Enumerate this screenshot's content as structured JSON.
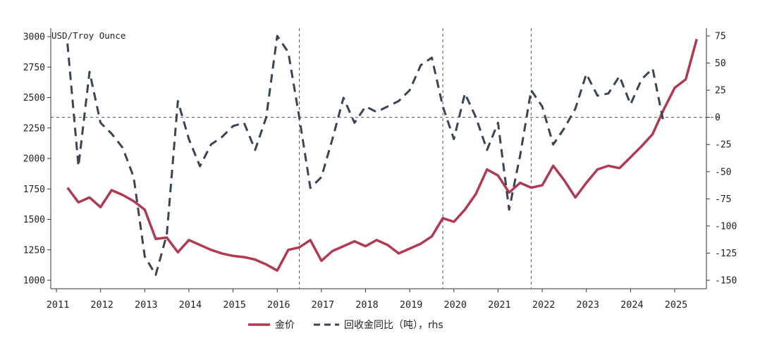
{
  "chart_data": {
    "type": "line",
    "title": "",
    "y_left_label": "USD/Troy Ounce",
    "y_left_range": [
      1000,
      3000
    ],
    "y_left_ticks": [
      "3000",
      "2750",
      "2500",
      "2250",
      "2000",
      "1750",
      "1500",
      "1250",
      "1000"
    ],
    "y_right_range": [
      -150,
      75
    ],
    "y_right_ticks": [
      "75",
      "50",
      "25",
      "0",
      "-25",
      "-50",
      "-75",
      "-100",
      "-125",
      "-150"
    ],
    "x_ticks": [
      "2011",
      "2012",
      "2013",
      "2014",
      "2015",
      "2016",
      "2017",
      "2018",
      "2019",
      "2020",
      "2021",
      "2022",
      "2023",
      "2024",
      "2025"
    ],
    "x_range": [
      2011.0,
      2025.0
    ],
    "vertical_reference_lines": [
      2016.5,
      2019.75,
      2021.75
    ],
    "horizontal_reference_right": 0,
    "legend_position": "bottom",
    "series": [
      {
        "name": "金价",
        "axis": "left",
        "style": "solid",
        "color": "#b03a52",
        "points": [
          [
            2011.25,
            1760
          ],
          [
            2011.5,
            1640
          ],
          [
            2011.75,
            1680
          ],
          [
            2012.0,
            1600
          ],
          [
            2012.25,
            1740
          ],
          [
            2012.5,
            1700
          ],
          [
            2012.75,
            1650
          ],
          [
            2013.0,
            1580
          ],
          [
            2013.25,
            1340
          ],
          [
            2013.5,
            1350
          ],
          [
            2013.75,
            1230
          ],
          [
            2014.0,
            1330
          ],
          [
            2014.25,
            1290
          ],
          [
            2014.5,
            1250
          ],
          [
            2014.75,
            1220
          ],
          [
            2015.0,
            1200
          ],
          [
            2015.25,
            1190
          ],
          [
            2015.5,
            1170
          ],
          [
            2015.75,
            1130
          ],
          [
            2016.0,
            1080
          ],
          [
            2016.25,
            1250
          ],
          [
            2016.5,
            1270
          ],
          [
            2016.75,
            1330
          ],
          [
            2017.0,
            1160
          ],
          [
            2017.25,
            1240
          ],
          [
            2017.5,
            1280
          ],
          [
            2017.75,
            1320
          ],
          [
            2018.0,
            1280
          ],
          [
            2018.25,
            1330
          ],
          [
            2018.5,
            1290
          ],
          [
            2018.75,
            1220
          ],
          [
            2019.0,
            1260
          ],
          [
            2019.25,
            1300
          ],
          [
            2019.5,
            1360
          ],
          [
            2019.75,
            1510
          ],
          [
            2020.0,
            1480
          ],
          [
            2020.25,
            1580
          ],
          [
            2020.5,
            1710
          ],
          [
            2020.75,
            1910
          ],
          [
            2021.0,
            1860
          ],
          [
            2021.25,
            1720
          ],
          [
            2021.5,
            1800
          ],
          [
            2021.75,
            1760
          ],
          [
            2022.0,
            1780
          ],
          [
            2022.25,
            1940
          ],
          [
            2022.5,
            1820
          ],
          [
            2022.75,
            1680
          ],
          [
            2023.0,
            1800
          ],
          [
            2023.25,
            1910
          ],
          [
            2023.5,
            1940
          ],
          [
            2023.75,
            1920
          ],
          [
            2024.0,
            2010
          ],
          [
            2024.25,
            2100
          ],
          [
            2024.5,
            2200
          ],
          [
            2024.75,
            2400
          ],
          [
            2025.0,
            2580
          ],
          [
            2025.25,
            2650
          ],
          [
            2025.5,
            2980
          ]
        ]
      },
      {
        "name": "回收金同比（吨），rhs",
        "axis": "right",
        "style": "dashed",
        "color": "#3b4456",
        "points": [
          [
            2011.25,
            68
          ],
          [
            2011.5,
            -45
          ],
          [
            2011.75,
            42
          ],
          [
            2012.0,
            -5
          ],
          [
            2012.25,
            -15
          ],
          [
            2012.5,
            -28
          ],
          [
            2012.75,
            -55
          ],
          [
            2013.0,
            -128
          ],
          [
            2013.25,
            -145
          ],
          [
            2013.5,
            -108
          ],
          [
            2013.75,
            15
          ],
          [
            2014.0,
            -20
          ],
          [
            2014.25,
            -45
          ],
          [
            2014.5,
            -25
          ],
          [
            2014.75,
            -18
          ],
          [
            2015.0,
            -8
          ],
          [
            2015.25,
            -5
          ],
          [
            2015.5,
            -30
          ],
          [
            2015.75,
            0
          ],
          [
            2016.0,
            75
          ],
          [
            2016.25,
            60
          ],
          [
            2016.5,
            0
          ],
          [
            2016.75,
            -65
          ],
          [
            2017.0,
            -55
          ],
          [
            2017.25,
            -20
          ],
          [
            2017.5,
            18
          ],
          [
            2017.75,
            -5
          ],
          [
            2018.0,
            10
          ],
          [
            2018.25,
            5
          ],
          [
            2018.5,
            10
          ],
          [
            2018.75,
            15
          ],
          [
            2019.0,
            25
          ],
          [
            2019.25,
            48
          ],
          [
            2019.5,
            55
          ],
          [
            2019.75,
            10
          ],
          [
            2020.0,
            -20
          ],
          [
            2020.25,
            22
          ],
          [
            2020.5,
            0
          ],
          [
            2020.75,
            -30
          ],
          [
            2021.0,
            -5
          ],
          [
            2021.25,
            -85
          ],
          [
            2021.5,
            -35
          ],
          [
            2021.75,
            25
          ],
          [
            2022.0,
            10
          ],
          [
            2022.25,
            -25
          ],
          [
            2022.5,
            -10
          ],
          [
            2022.75,
            8
          ],
          [
            2023.0,
            40
          ],
          [
            2023.25,
            20
          ],
          [
            2023.5,
            22
          ],
          [
            2023.75,
            38
          ],
          [
            2024.0,
            12
          ],
          [
            2024.25,
            35
          ],
          [
            2024.5,
            45
          ],
          [
            2024.75,
            -5
          ]
        ]
      }
    ]
  },
  "legend": {
    "gold_price_label": "金价",
    "recycled_label": "回收金同比（吨），rhs"
  }
}
